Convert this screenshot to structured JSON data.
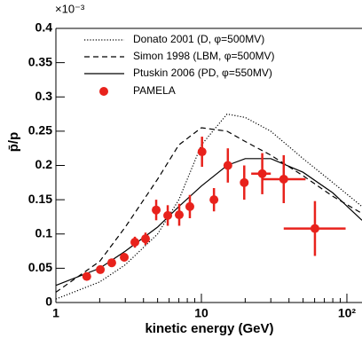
{
  "chart_data": {
    "type": "scatter",
    "y_label": "p̄/p",
    "x_label": "kinetic energy (GeV)",
    "y_multiplier": "×10⁻³",
    "xlim": [
      1,
      127
    ],
    "ylim": [
      0,
      0.4
    ],
    "log_x": true,
    "xticks": [
      1,
      10,
      {
        "value": 100,
        "label": "10²"
      }
    ],
    "x_minor_ticks": [
      2,
      3,
      4,
      5,
      6,
      7,
      8,
      9,
      20,
      30,
      40,
      50,
      60,
      70,
      80,
      90
    ],
    "yticks": [
      0,
      0.05,
      0.1,
      0.15,
      0.2,
      0.25,
      0.3,
      0.35,
      0.4
    ],
    "legend": "upper-left",
    "series": [
      {
        "name": "Donato 2001 (D, φ=500MV)",
        "kind": "line",
        "dash": "dotted",
        "color": "#000000",
        "x": [
          1,
          2,
          3,
          5,
          7,
          10,
          15,
          20,
          30,
          50,
          80,
          127
        ],
        "values": [
          0.005,
          0.03,
          0.055,
          0.1,
          0.15,
          0.23,
          0.275,
          0.27,
          0.25,
          0.21,
          0.175,
          0.14
        ]
      },
      {
        "name": "Simon 1998 (LBM, φ=500MV)",
        "kind": "line",
        "dash": "dashed",
        "color": "#000000",
        "x": [
          1,
          2,
          3,
          5,
          7,
          10,
          15,
          20,
          30,
          50,
          80,
          127
        ],
        "values": [
          0.015,
          0.06,
          0.11,
          0.18,
          0.23,
          0.255,
          0.25,
          0.235,
          0.215,
          0.185,
          0.155,
          0.13
        ]
      },
      {
        "name": "Ptuskin 2006 (PD, φ=550MV)",
        "kind": "line",
        "dash": "solid",
        "color": "#000000",
        "x": [
          1,
          2,
          3,
          5,
          7,
          10,
          15,
          20,
          30,
          50,
          80,
          127
        ],
        "values": [
          0.025,
          0.05,
          0.075,
          0.11,
          0.14,
          0.17,
          0.2,
          0.21,
          0.21,
          0.19,
          0.16,
          0.12
        ]
      },
      {
        "name": "PAMELA",
        "kind": "points",
        "color": "#e8221c",
        "x": [
          1.63,
          2.02,
          2.42,
          2.95,
          3.49,
          4.13,
          4.89,
          5.87,
          7.04,
          8.33,
          10.1,
          12.2,
          15.2,
          19.7,
          26.2,
          36.8,
          60.3
        ],
        "values": [
          0.038,
          0.048,
          0.058,
          0.066,
          0.088,
          0.093,
          0.135,
          0.127,
          0.128,
          0.14,
          0.22,
          0.15,
          0.2,
          0.175,
          0.188,
          0.18,
          0.108
        ],
        "yerr": [
          0.004,
          0.004,
          0.005,
          0.006,
          0.008,
          0.009,
          0.015,
          0.015,
          0.016,
          0.017,
          0.022,
          0.017,
          0.025,
          0.025,
          0.03,
          0.035,
          0.04
        ],
        "x_low": [
          null,
          null,
          null,
          null,
          null,
          null,
          null,
          null,
          null,
          null,
          null,
          null,
          null,
          null,
          22,
          26,
          36.8
        ],
        "x_high": [
          null,
          null,
          null,
          null,
          null,
          null,
          null,
          null,
          null,
          null,
          null,
          null,
          null,
          null,
          30,
          52,
          98
        ]
      }
    ]
  }
}
